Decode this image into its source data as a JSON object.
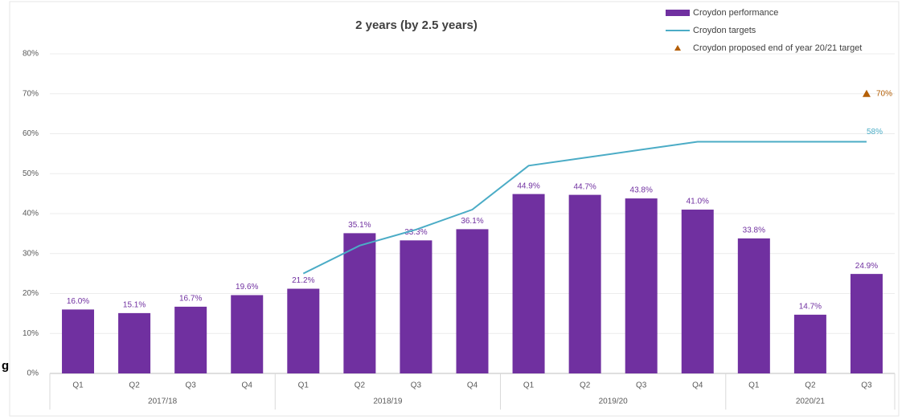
{
  "chart_data": {
    "type": "bar",
    "title": "2 years (by 2.5 years)",
    "annotation": "g",
    "categories": [
      "Q1",
      "Q2",
      "Q3",
      "Q4",
      "Q1",
      "Q2",
      "Q3",
      "Q4",
      "Q1",
      "Q2",
      "Q3",
      "Q4",
      "Q1",
      "Q2",
      "Q3"
    ],
    "groups": [
      {
        "name": "2017/18",
        "start": 0,
        "end": 3
      },
      {
        "name": "2018/19",
        "start": 4,
        "end": 7
      },
      {
        "name": "2019/20",
        "start": 8,
        "end": 11
      },
      {
        "name": "2020/21",
        "start": 12,
        "end": 14
      }
    ],
    "series": [
      {
        "name": "Croydon performance",
        "type": "bar",
        "color": "#7030a0",
        "values": [
          16.0,
          15.1,
          16.7,
          19.6,
          21.2,
          35.1,
          33.3,
          36.1,
          44.9,
          44.7,
          43.8,
          41.0,
          33.8,
          14.7,
          24.9
        ],
        "value_labels": [
          "16.0%",
          "15.1%",
          "16.7%",
          "19.6%",
          "21.2%",
          "35.1%",
          "33.3%",
          "36.1%",
          "44.9%",
          "44.7%",
          "43.8%",
          "41.0%",
          "33.8%",
          "14.7%",
          "24.9%"
        ]
      },
      {
        "name": "Croydon targets",
        "type": "line",
        "color": "#4bacc6",
        "values": [
          null,
          null,
          null,
          null,
          25,
          32,
          36,
          41,
          52,
          54,
          56,
          58,
          58,
          58,
          58
        ],
        "value_labels": [
          null,
          null,
          null,
          null,
          null,
          null,
          null,
          null,
          null,
          null,
          null,
          null,
          null,
          null,
          "58%"
        ]
      },
      {
        "name": "Croydon proposed end of year 20/21 target",
        "type": "scatter",
        "marker": "triangle",
        "color": "#b45f06",
        "values": [
          null,
          null,
          null,
          null,
          null,
          null,
          null,
          null,
          null,
          null,
          null,
          null,
          null,
          null,
          70
        ],
        "value_labels": [
          null,
          null,
          null,
          null,
          null,
          null,
          null,
          null,
          null,
          null,
          null,
          null,
          null,
          null,
          "70%"
        ]
      }
    ],
    "ylim": [
      0,
      80
    ],
    "yticks": [
      {
        "value": 0,
        "label": "0%"
      },
      {
        "value": 10,
        "label": "10%"
      },
      {
        "value": 20,
        "label": "20%"
      },
      {
        "value": 30,
        "label": "30%"
      },
      {
        "value": 40,
        "label": "40%"
      },
      {
        "value": 50,
        "label": "50%"
      },
      {
        "value": 60,
        "label": "60%"
      },
      {
        "value": 70,
        "label": "70%"
      },
      {
        "value": 80,
        "label": "80%"
      }
    ],
    "grid": true,
    "legend": "top-right"
  }
}
